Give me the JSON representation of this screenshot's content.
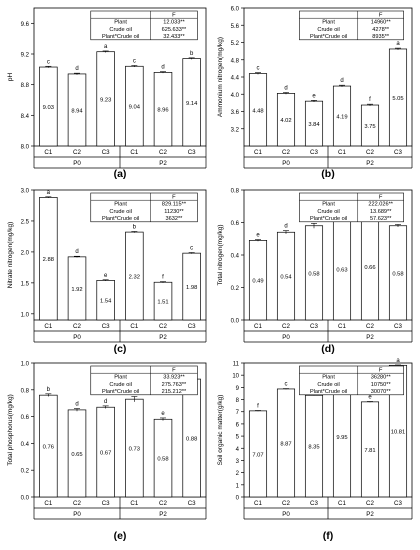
{
  "chart_data": [
    {
      "type": "bar",
      "panel": "(a)",
      "ylabel": "pH",
      "ylim": [
        8.0,
        9.8
      ],
      "yticks": [
        8.0,
        8.4,
        8.8,
        9.2,
        9.6
      ],
      "categories": [
        "C1",
        "C2",
        "C3",
        "C1",
        "C2",
        "C3"
      ],
      "groups": [
        "P0",
        "P2"
      ],
      "values": [
        9.03,
        8.94,
        9.23,
        9.04,
        8.96,
        9.14
      ],
      "value_labels": [
        "9.03",
        "8.94",
        "9.23",
        "9.04",
        "8.96",
        "9.14"
      ],
      "letters": [
        "c",
        "d",
        "a",
        "c",
        "d",
        "b"
      ],
      "errors": [
        0.01,
        0.01,
        0.01,
        0.01,
        0.01,
        0.01
      ],
      "stats": {
        "header": "F",
        "rows": [
          [
            "Plant",
            "12.033**"
          ],
          [
            "Crude oil",
            "625.633**"
          ],
          [
            "Plant*Crude oil",
            "32.433**"
          ]
        ]
      }
    },
    {
      "type": "bar",
      "panel": "(b)",
      "ylabel": "Ammonium nitrogen(mg/kg)",
      "ylim": [
        2.8,
        6.0
      ],
      "yticks": [
        3.2,
        3.6,
        4.0,
        4.4,
        4.8,
        5.2,
        5.6,
        6.0
      ],
      "categories": [
        "C1",
        "C2",
        "C3",
        "C1",
        "C2",
        "C3"
      ],
      "groups": [
        "P0",
        "P2"
      ],
      "values": [
        4.48,
        4.02,
        3.84,
        4.19,
        3.75,
        5.05
      ],
      "value_labels": [
        "4.48",
        "4.02",
        "3.84",
        "4.19",
        "3.75",
        "5.05"
      ],
      "letters": [
        "c",
        "d",
        "e",
        "d",
        "f",
        "a"
      ],
      "errors": [
        0.02,
        0.02,
        0.02,
        0.02,
        0.02,
        0.02
      ],
      "stats": {
        "header": "F",
        "rows": [
          [
            "Plant",
            "14960**"
          ],
          [
            "Crude oil",
            "4278**"
          ],
          [
            "Plant*Crude oil",
            "8935**"
          ]
        ]
      }
    },
    {
      "type": "bar",
      "panel": "(c)",
      "ylabel": "Nitrate nitrogen(mg/kg)",
      "ylim": [
        0.9,
        3.0
      ],
      "yticks": [
        1.0,
        1.5,
        2.0,
        2.5,
        3.0
      ],
      "categories": [
        "C1",
        "C2",
        "C3",
        "C1",
        "C2",
        "C3"
      ],
      "groups": [
        "P0",
        "P2"
      ],
      "values": [
        2.88,
        1.92,
        1.54,
        2.32,
        1.51,
        1.98
      ],
      "value_labels": [
        "2.88",
        "1.92",
        "1.54",
        "2.32",
        "1.51",
        "1.98"
      ],
      "letters": [
        "a",
        "d",
        "e",
        "b",
        "f",
        "c"
      ],
      "errors": [
        0.01,
        0.01,
        0.01,
        0.01,
        0.01,
        0.01
      ],
      "stats": {
        "header": "F",
        "rows": [
          [
            "Plant",
            "829.115**"
          ],
          [
            "Crude oil",
            "11230**"
          ],
          [
            "Plant*Crude oil",
            "3632**"
          ]
        ]
      }
    },
    {
      "type": "bar",
      "panel": "(d)",
      "ylabel": "Total nitrogen(mg/kg)",
      "ylim": [
        0.0,
        0.8
      ],
      "yticks": [
        0.0,
        0.2,
        0.4,
        0.6,
        0.8
      ],
      "categories": [
        "C1",
        "C2",
        "C3",
        "C1",
        "C2",
        "C3"
      ],
      "groups": [
        "P0",
        "P2"
      ],
      "values": [
        0.49,
        0.54,
        0.58,
        0.63,
        0.66,
        0.58
      ],
      "value_labels": [
        "0.49",
        "0.54",
        "0.58",
        "0.63",
        "0.66",
        "0.58"
      ],
      "letters": [
        "e",
        "d",
        "c",
        "b",
        "a",
        "c"
      ],
      "errors": [
        0.005,
        0.01,
        0.015,
        0.025,
        0.02,
        0.008
      ],
      "stats": {
        "header": "F",
        "rows": [
          [
            "Plant",
            "222.026**"
          ],
          [
            "Crude oil",
            "13.689**"
          ],
          [
            "Plant*Crude oil",
            "57.623**"
          ]
        ]
      }
    },
    {
      "type": "bar",
      "panel": "(e)",
      "ylabel": "Total phosphorus(mg/kg)",
      "ylim": [
        0.0,
        1.0
      ],
      "yticks": [
        0.0,
        0.2,
        0.4,
        0.6,
        0.8,
        1.0
      ],
      "categories": [
        "C1",
        "C2",
        "C3",
        "C1",
        "C2",
        "C3"
      ],
      "groups": [
        "P0",
        "P2"
      ],
      "values": [
        0.76,
        0.65,
        0.67,
        0.73,
        0.58,
        0.88
      ],
      "value_labels": [
        "0.76",
        "0.65",
        "0.67",
        "0.73",
        "0.58",
        "0.88"
      ],
      "letters": [
        "b",
        "d",
        "d",
        "c",
        "e",
        "a"
      ],
      "errors": [
        0.01,
        0.01,
        0.01,
        0.02,
        0.01,
        0.01
      ],
      "stats": {
        "header": "F",
        "rows": [
          [
            "Plant",
            "33.923**"
          ],
          [
            "Crude oil",
            "275.763**"
          ],
          [
            "Plant*Crude oil",
            "215.212**"
          ]
        ]
      }
    },
    {
      "type": "bar",
      "panel": "(f)",
      "ylabel": "Soil organic matter(g/kg)",
      "ylim": [
        0,
        11
      ],
      "yticks": [
        0,
        1,
        2,
        3,
        4,
        5,
        6,
        7,
        8,
        9,
        10,
        11
      ],
      "categories": [
        "C1",
        "C2",
        "C3",
        "C1",
        "C2",
        "C3"
      ],
      "groups": [
        "P0",
        "P2"
      ],
      "values": [
        7.07,
        8.87,
        8.35,
        9.95,
        7.81,
        10.81
      ],
      "value_labels": [
        "7.07",
        "8.87",
        "8.35",
        "9.95",
        "7.81",
        "10.81"
      ],
      "letters": [
        "f",
        "c",
        "d",
        "b",
        "e",
        "a"
      ],
      "errors": [
        0.03,
        0.03,
        0.03,
        0.03,
        0.03,
        0.03
      ],
      "stats": {
        "header": "F",
        "rows": [
          [
            "Plant",
            "36280**"
          ],
          [
            "Crude oil",
            "10750**"
          ],
          [
            "Plant*Crude oil",
            "30070**"
          ]
        ]
      }
    }
  ]
}
